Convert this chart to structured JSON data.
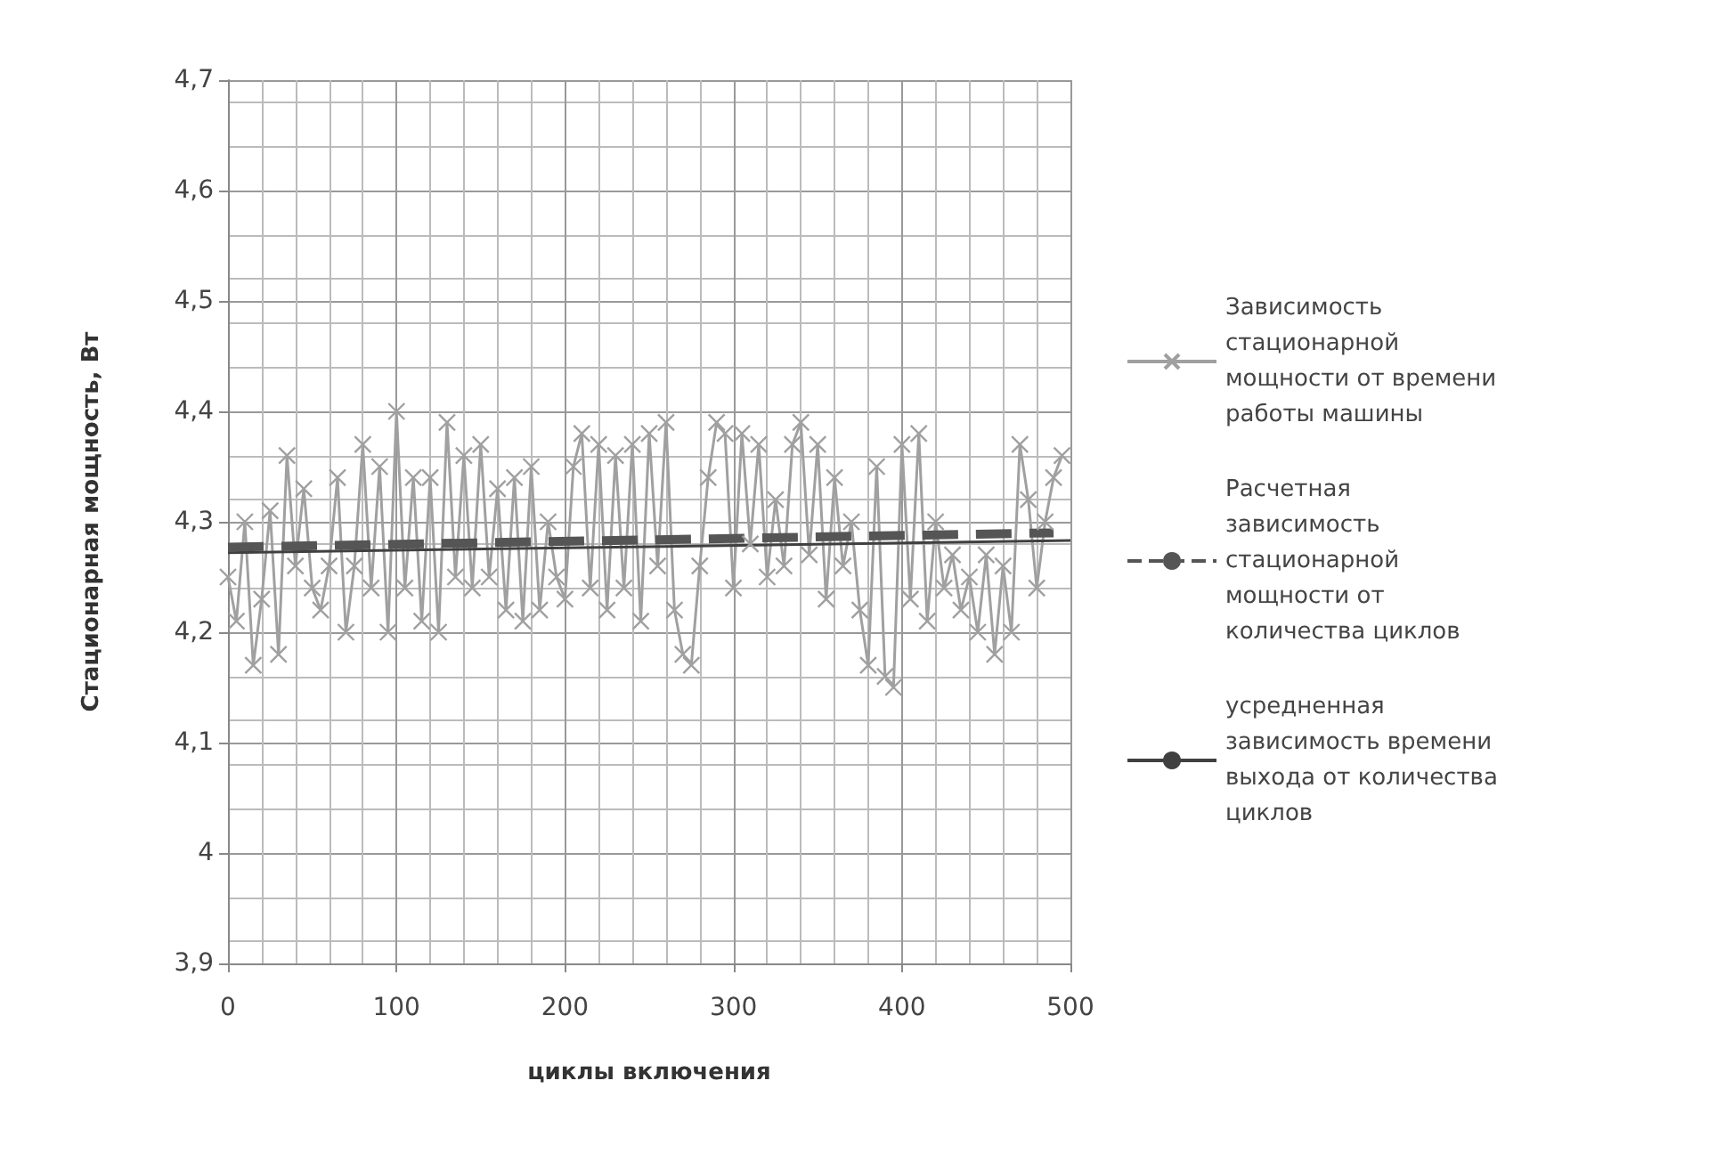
{
  "chart_data": {
    "type": "line",
    "xlabel": "циклы включения",
    "ylabel": "Стационарная мощность, Вт",
    "xlim": [
      0,
      500
    ],
    "xticks": [
      0,
      100,
      200,
      300,
      400,
      500
    ],
    "ylim": [
      3.9,
      4.7
    ],
    "yticks": [
      {
        "value": 3.9,
        "label": "3,9"
      },
      4,
      {
        "value": 4.1,
        "label": "4,1"
      },
      {
        "value": 4.2,
        "label": "4,2"
      },
      {
        "value": 4.3,
        "label": "4,3"
      },
      {
        "value": 4.4,
        "label": "4,4"
      },
      {
        "value": 4.5,
        "label": "4,5"
      },
      {
        "value": 4.6,
        "label": "4,6"
      },
      {
        "value": 4.7,
        "label": "4,7"
      }
    ],
    "grid": true,
    "legend": "right",
    "series": [
      {
        "name": "Зависимость  стационарной мощности от времени работы машины",
        "color": "#a0a0a0",
        "marker": "cross",
        "line_style": "solid",
        "x": [
          0,
          5,
          10,
          15,
          20,
          25,
          30,
          35,
          40,
          45,
          50,
          55,
          60,
          65,
          70,
          75,
          80,
          85,
          90,
          95,
          100,
          105,
          110,
          115,
          120,
          125,
          130,
          135,
          140,
          145,
          150,
          155,
          160,
          165,
          170,
          175,
          180,
          185,
          190,
          195,
          200,
          205,
          210,
          215,
          220,
          225,
          230,
          235,
          240,
          245,
          250,
          255,
          260,
          265,
          270,
          275,
          280,
          285,
          290,
          295,
          300,
          305,
          310,
          315,
          320,
          325,
          330,
          335,
          340,
          345,
          350,
          355,
          360,
          365,
          370,
          375,
          380,
          385,
          390,
          395,
          400,
          405,
          410,
          415,
          420,
          425,
          430,
          435,
          440,
          445,
          450,
          455,
          460,
          465,
          470,
          475,
          480,
          485,
          490,
          495
        ],
        "values": [
          4.25,
          4.21,
          4.3,
          4.17,
          4.23,
          4.31,
          4.18,
          4.36,
          4.26,
          4.33,
          4.24,
          4.22,
          4.26,
          4.34,
          4.2,
          4.26,
          4.37,
          4.24,
          4.35,
          4.2,
          4.4,
          4.24,
          4.34,
          4.21,
          4.34,
          4.2,
          4.39,
          4.25,
          4.36,
          4.24,
          4.37,
          4.25,
          4.33,
          4.22,
          4.34,
          4.21,
          4.35,
          4.22,
          4.3,
          4.25,
          4.23,
          4.35,
          4.38,
          4.24,
          4.37,
          4.22,
          4.36,
          4.24,
          4.37,
          4.21,
          4.38,
          4.26,
          4.39,
          4.22,
          4.18,
          4.17,
          4.26,
          4.34,
          4.39,
          4.38,
          4.24,
          4.38,
          4.28,
          4.37,
          4.25,
          4.32,
          4.26,
          4.37,
          4.39,
          4.27,
          4.37,
          4.23,
          4.34,
          4.26,
          4.3,
          4.22,
          4.17,
          4.35,
          4.16,
          4.15,
          4.37,
          4.23,
          4.38,
          4.21,
          4.3,
          4.24,
          4.27,
          4.22,
          4.25,
          4.2,
          4.27,
          4.18,
          4.26,
          4.2,
          4.37,
          4.32,
          4.24,
          4.3,
          4.34,
          4.36
        ]
      },
      {
        "name": "Расчетная зависимость стационарной мощности от количества циклов",
        "color": "#555555",
        "marker": "none",
        "line_style": "dashed",
        "x": [
          0,
          490
        ],
        "values": [
          4.277,
          4.29
        ]
      },
      {
        "name": "усредненная зависимость времени выхода от количества циклов",
        "color": "#404040",
        "marker": "none",
        "line_style": "solid",
        "x": [
          0,
          500
        ],
        "values": [
          4.272,
          4.283
        ]
      }
    ]
  }
}
